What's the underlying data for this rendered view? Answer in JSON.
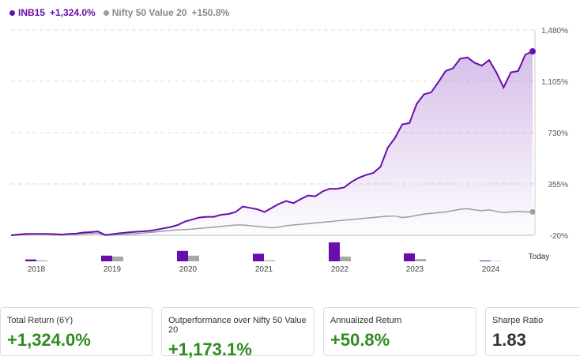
{
  "legend": {
    "series1_name": "INB15",
    "series1_value": "+1,324.0%",
    "series2_name": "Nifty 50 Value 20",
    "series2_value": "+150.8%"
  },
  "colors": {
    "series1": "#6a0dad",
    "series2": "#9e9e9e",
    "positive": "#2e8b1e"
  },
  "chart_data": {
    "type": "line",
    "y_ticks": [
      "1,480%",
      "1,105%",
      "730%",
      "355%",
      "-20%"
    ],
    "y_tick_values": [
      1480,
      1105,
      730,
      355,
      -20
    ],
    "ylim": [
      -20,
      1480
    ],
    "x_labels": [
      "2018",
      "2019",
      "2020",
      "2021",
      "2022",
      "2023",
      "2024",
      "Today"
    ],
    "series": [
      {
        "name": "INB15",
        "values": [
          -20,
          -15,
          -10,
          -10,
          -10,
          -10,
          -12,
          -15,
          -10,
          -8,
          0,
          3,
          8,
          -18,
          -12,
          -5,
          0,
          5,
          8,
          12,
          20,
          30,
          40,
          55,
          80,
          95,
          110,
          115,
          115,
          130,
          135,
          150,
          190,
          180,
          170,
          150,
          180,
          210,
          230,
          215,
          245,
          270,
          265,
          300,
          320,
          320,
          330,
          370,
          400,
          420,
          435,
          480,
          620,
          690,
          790,
          800,
          940,
          1010,
          1025,
          1100,
          1180,
          1200,
          1270,
          1280,
          1240,
          1220,
          1260,
          1170,
          1060,
          1170,
          1180,
          1300,
          1324
        ]
      },
      {
        "name": "Nifty 50 Value 20",
        "values": [
          -20,
          -18,
          -15,
          -10,
          -10,
          -12,
          -15,
          -18,
          -15,
          -12,
          -10,
          -8,
          -5,
          -20,
          -18,
          -15,
          -12,
          -10,
          -5,
          0,
          5,
          10,
          15,
          20,
          22,
          25,
          30,
          35,
          40,
          45,
          50,
          55,
          55,
          50,
          45,
          40,
          35,
          40,
          50,
          55,
          60,
          65,
          70,
          75,
          80,
          85,
          90,
          95,
          100,
          105,
          110,
          115,
          120,
          120,
          110,
          115,
          125,
          135,
          140,
          145,
          150,
          160,
          170,
          175,
          165,
          160,
          165,
          155,
          145,
          150,
          155,
          150,
          150.8
        ]
      }
    ],
    "bar_groups": [
      {
        "label": "2018",
        "values": [
          10,
          5
        ]
      },
      {
        "label": "2019",
        "values": [
          30,
          25
        ]
      },
      {
        "label": "2020",
        "values": [
          55,
          30
        ]
      },
      {
        "label": "2021",
        "values": [
          40,
          5
        ]
      },
      {
        "label": "2022",
        "values": [
          100,
          25
        ]
      },
      {
        "label": "2023",
        "values": [
          42,
          12
        ]
      },
      {
        "label": "2024",
        "values": [
          4,
          2
        ]
      }
    ]
  },
  "cards": [
    {
      "label": "Total Return (6Y)",
      "value": "+1,324.0%"
    },
    {
      "label": "Outperformance over Nifty 50 Value 20",
      "value": "+1,173.1%"
    },
    {
      "label": "Annualized Return",
      "value": "+50.8%"
    },
    {
      "label": "Sharpe Ratio",
      "value": "1.83"
    }
  ]
}
